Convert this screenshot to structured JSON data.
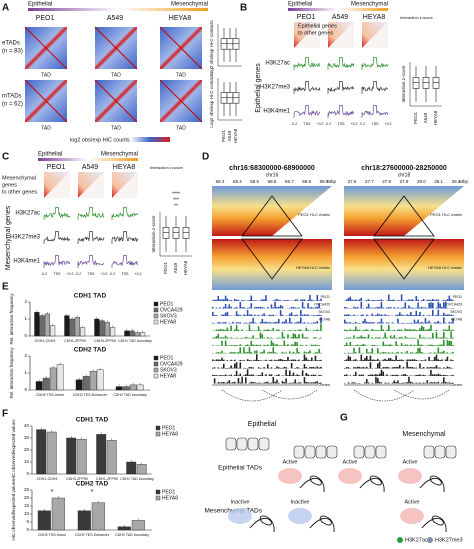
{
  "panel_labels": [
    "A",
    "B",
    "C",
    "D",
    "E",
    "F",
    "G"
  ],
  "A": {
    "epithelial": "Epithelial",
    "mesenchymal": "Mesenchymal",
    "cells": [
      "PEO1",
      "A549",
      "HEYA8"
    ],
    "rows": [
      [
        "eTADs",
        "(n = 83)"
      ],
      [
        "mTADs",
        "(n = 62)"
      ]
    ],
    "tad": "TAD",
    "colorbar": "log2 obs/exp HiC counts:",
    "box_ylabel": "Log2 obs/exp Hi-C contacts",
    "box_x": [
      "PEO1",
      "A549",
      "HEYA8"
    ]
  },
  "B": {
    "epithelial": "Epithelial",
    "mesenchymal": "Mesenchymal",
    "cells": [
      "PEO1",
      "A549",
      "HEYA8"
    ],
    "title": [
      "Epithelial genes",
      "to other genes"
    ],
    "legend": "Interaction z-score",
    "tracks": [
      "H3K27ac",
      "H3K27me3",
      "H3K4me1"
    ],
    "side": "Epithelial genes",
    "tss": [
      "-0.2",
      "TSS",
      "+0.2"
    ],
    "box_ylabel": "Interaction z-score",
    "box_x": [
      "PEO1",
      "A549",
      "HEYA8"
    ]
  },
  "C": {
    "epithelial": "Epithelial",
    "mesenchymal": "Mesenchymal",
    "cells": [
      "PEO1",
      "A549",
      "HEYA8"
    ],
    "title": [
      "Mesenchymal",
      "genes",
      "to other genes"
    ],
    "legend": "Interaction z-score",
    "tracks": [
      "H3K27ac",
      "H3K27me3",
      "H3K4me1"
    ],
    "side": "Mesenchymal genes",
    "tss": [
      "-0.2",
      "TSS",
      "+0.2"
    ],
    "box_ylabel": "Interaction z-score",
    "box_x": [
      "PEO1",
      "A549",
      "HEYA8"
    ],
    "sig": [
      "****",
      "***",
      "**"
    ]
  },
  "D": {
    "regions": [
      {
        "title": "chr16:68300000-68900000",
        "chr": "chr16",
        "ticks": [
          "68.3",
          "68.4",
          "68.5",
          "68.6",
          "68.7",
          "68.8",
          "68.9"
        ]
      },
      {
        "title": "chr18:27600000-28250000",
        "chr": "chr18",
        "ticks": [
          "27.6",
          "27.7",
          "27.8",
          "27.9",
          "28.0",
          "28.1",
          "28.2"
        ]
      }
    ],
    "unit": "Mbp",
    "maps": [
      "PEO1 Hi-C matrix",
      "HEYA8 Hi-C matrix"
    ],
    "tracks": [
      "PEO1",
      "OVCA429",
      "SKOV3",
      "HEYA8"
    ],
    "genes": "Genes"
  },
  "G": {
    "epithelial": "Epithelial",
    "mesenchymal": "Mesenchymal",
    "active": "Active",
    "inactive": "Inactive",
    "etads": "Epithelial TADs",
    "mtads": "Mesenchymal TADs",
    "marks": [
      "H3K27ac",
      "H3K27me3"
    ]
  },
  "chart_data": [
    {
      "type": "bar",
      "title": "CDH1 TAD",
      "ylabel": "Rel. interaction frequency",
      "categories": [
        "CDH1-CDH3",
        "CDH1-ZFP90",
        "CDH3-ZFP90",
        "CDH1 TAD boundary"
      ],
      "series": [
        {
          "name": "PEO1",
          "color": "#1a1a1a",
          "values": [
            1.4,
            1.2,
            1.0,
            0.3
          ]
        },
        {
          "name": "OVCA429",
          "color": "#6b6b6b",
          "values": [
            1.2,
            1.0,
            0.9,
            0.3
          ]
        },
        {
          "name": "SKOV3",
          "color": "#a8a8a8",
          "values": [
            1.3,
            1.1,
            0.8,
            0.2
          ]
        },
        {
          "name": "HEYA8",
          "color": "#e6e6e6",
          "values": [
            0.6,
            0.5,
            0.5,
            0.2
          ]
        }
      ],
      "ylim": [
        0,
        2
      ],
      "yticks": [
        0,
        1,
        2
      ]
    },
    {
      "type": "bar",
      "title": "CDH2 TAD",
      "ylabel": "Rel. interaction frequency",
      "categories": [
        "CDH2 TSS-Intron",
        "CDH2 TES-Enhancer",
        "CDH2 TAD boundary"
      ],
      "series": [
        {
          "name": "PEO1",
          "color": "#1a1a1a",
          "values": [
            0.5,
            0.6,
            0.2
          ]
        },
        {
          "name": "OVCA429",
          "color": "#6b6b6b",
          "values": [
            0.7,
            0.8,
            0.2
          ]
        },
        {
          "name": "SKOV3",
          "color": "#a8a8a8",
          "values": [
            1.3,
            1.1,
            0.3
          ]
        },
        {
          "name": "HEYA8",
          "color": "#e6e6e6",
          "values": [
            1.5,
            1.2,
            0.3
          ]
        }
      ],
      "ylim": [
        0,
        2
      ],
      "yticks": [
        0,
        1,
        2
      ]
    },
    {
      "type": "bar",
      "title": "CDH1 TAD",
      "ylabel": "HiC observed/expected values",
      "categories": [
        "CDH1-CDH3",
        "CDH3-ZFP90",
        "CDH1-ZFP90",
        "CDH1 TAD boundary"
      ],
      "series": [
        {
          "name": "PEO1",
          "color": "#3a3a3a",
          "values": [
            37,
            30,
            33,
            10
          ]
        },
        {
          "name": "HEYA8",
          "color": "#a8a8a8",
          "values": [
            35,
            29,
            28,
            8
          ]
        }
      ],
      "ylim": [
        0,
        40
      ],
      "yticks": [
        0,
        10,
        20,
        30,
        40
      ],
      "annotations": []
    },
    {
      "type": "bar",
      "title": "CDH2 TAD",
      "ylabel": "HiC observed/expected values",
      "categories": [
        "CDH2 TSS-Intron",
        "CDH2 TES-Enhancer",
        "CDH2 TAD boundary"
      ],
      "series": [
        {
          "name": "PEO1",
          "color": "#3a3a3a",
          "values": [
            12,
            12,
            2
          ]
        },
        {
          "name": "HEYA8",
          "color": "#a8a8a8",
          "values": [
            20,
            17,
            6
          ]
        }
      ],
      "ylim": [
        0,
        25
      ],
      "yticks": [
        0,
        5,
        10,
        15,
        20,
        25
      ],
      "annotations": [
        "*",
        "*"
      ]
    }
  ]
}
